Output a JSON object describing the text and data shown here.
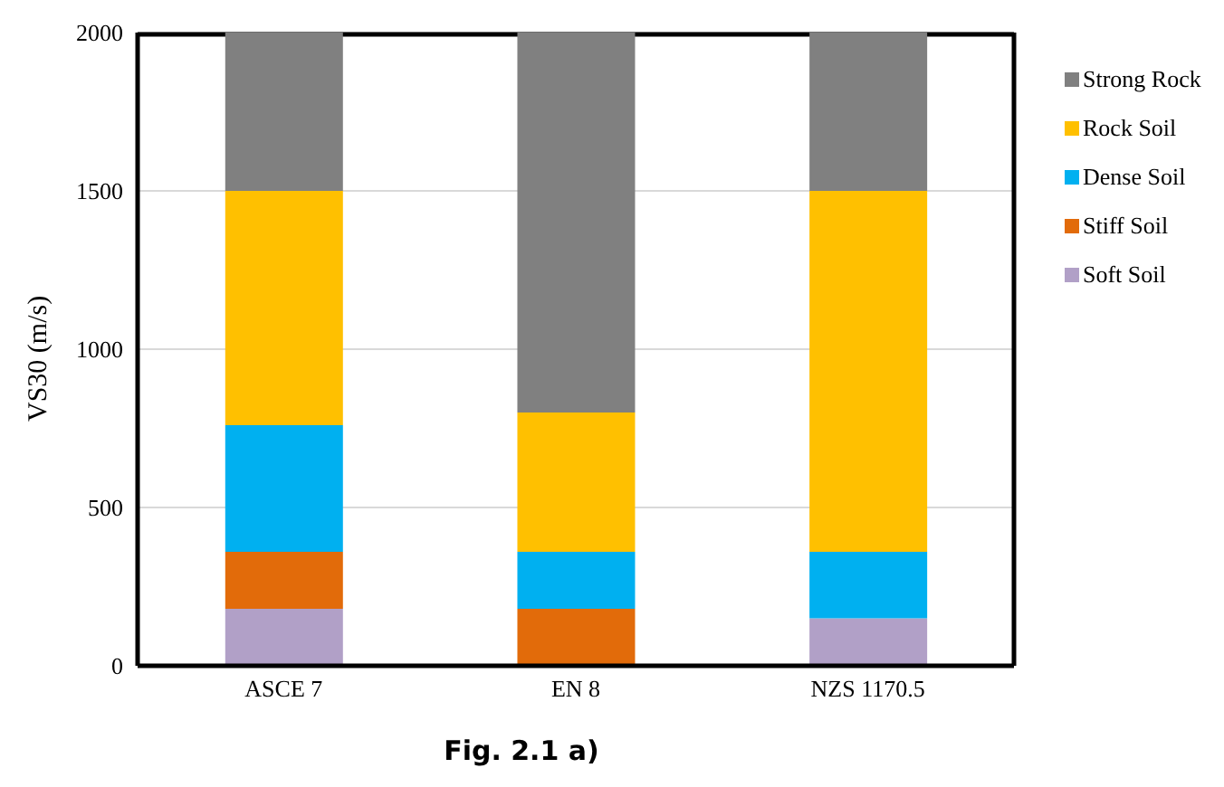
{
  "chart_data": {
    "type": "bar",
    "stacked": true,
    "ylabel": "VS30 (m/s)",
    "categories": [
      "ASCE 7",
      "EN 8",
      "NZS 1170.5"
    ],
    "series": [
      {
        "name": "Soft Soil",
        "color": "#b1a0c7",
        "values": [
          180,
          0,
          150
        ]
      },
      {
        "name": "Stiff Soil",
        "color": "#e26b0a",
        "values": [
          180,
          180,
          0
        ]
      },
      {
        "name": "Dense Soil",
        "color": "#00b0f0",
        "values": [
          400,
          180,
          210
        ]
      },
      {
        "name": "Rock Soil",
        "color": "#ffc000",
        "values": [
          740,
          440,
          1140
        ]
      },
      {
        "name": "Strong Rock",
        "color": "#808080",
        "values": [
          500,
          1200,
          500
        ]
      }
    ],
    "ylim": [
      0,
      2000
    ],
    "yticks": [
      0,
      500,
      1000,
      1500,
      2000
    ],
    "grid": "y",
    "legend": "right",
    "annotations": [
      "Fig. 2.1 a)"
    ]
  }
}
